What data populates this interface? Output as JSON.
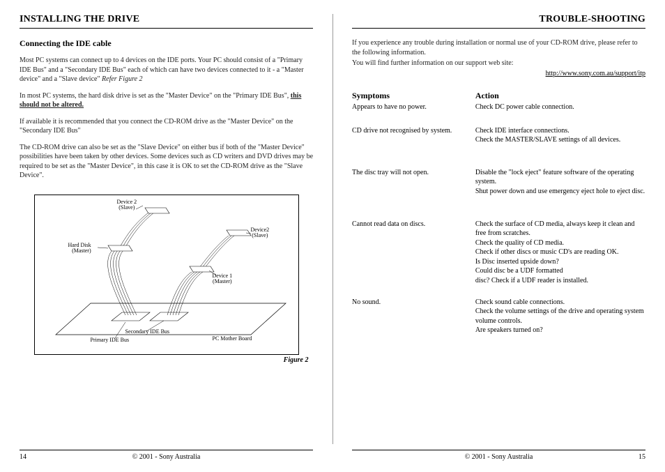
{
  "left": {
    "title": "INSTALLING THE DRIVE",
    "subtitle": "Connecting the IDE cable",
    "p1a": "Most PC systems can connect up to 4 devices on the IDE ports. Your PC should consist of a \"Primary IDE Bus\" and a \"Secondary IDE Bus\" each of which can have two devices connected to it - a \"Master device\" and a \"Slave device\" ",
    "p1b": "Refer Figure 2",
    "p2a": "In most PC systems, the hard disk drive is set as the \"Master Device\" on the \"Primary IDE Bus\", ",
    "p2b": "this should not be altered.",
    "p3": "If available it is recommended that you connect the CD-ROM drive as the \"Master Device\" on the \"Secondary IDE Bus\"",
    "p4": "The CD-ROM drive can also be set as the \"Slave Device\" on either bus if both of the \"Master Device\" possibilities have been taken by other devices. Some devices such as CD writers and DVD drives may be required to be set as the \"Master Device\", in this case it is OK to set the CD-ROM drive as the \"Slave Device\".",
    "figure": {
      "caption": "Figure 2",
      "labels": {
        "dev2a": "Device 2\n(Slave)",
        "dev2b": "Device2\n(Slave)",
        "hd": "Hard Disk\n(Master)",
        "dev1": "Device 1\n(Master)",
        "sec": "Secondary IDE Bus",
        "pri": "Primary IDE Bus",
        "mb": "PC Mother Board"
      }
    },
    "page_no": "14"
  },
  "right": {
    "title": "TROUBLE-SHOOTING",
    "intro1": "If you experience any trouble during installation or normal use of your CD-ROM drive, please refer to the following information.",
    "intro2": "You will find further information on our support web site:",
    "url": "http://www.sony.com.au/support/itp",
    "head_sym": "Symptoms",
    "head_act": "Action",
    "rows": [
      {
        "s": "Appears to have no power.",
        "a": "Check DC power cable connection."
      },
      {
        "s": "CD drive not recognised by system.",
        "a": "Check IDE interface connections.\nCheck the MASTER/SLAVE settings of all devices."
      },
      {
        "s": "The disc tray will not open.",
        "a": "Disable the \"lock eject\" feature software of the operating system.\nShut power down and use emergency eject hole to eject disc."
      },
      {
        "s": "Cannot read data on discs.",
        "a": "Check the surface of CD media, always keep it clean and free from scratches.\nCheck the quality of CD media.\nCheck if other discs or music CD's are reading OK.\nIs Disc inserted upside down?\nCould disc be a UDF formatted\ndisc? Check if a UDF reader is installed."
      },
      {
        "s": "No sound.",
        "a": "Check sound cable connections.\nCheck the volume settings of the drive and operating system volume controls.\nAre speakers turned on?"
      }
    ],
    "page_no": "15"
  },
  "copyright": "© 2001 - Sony Australia"
}
